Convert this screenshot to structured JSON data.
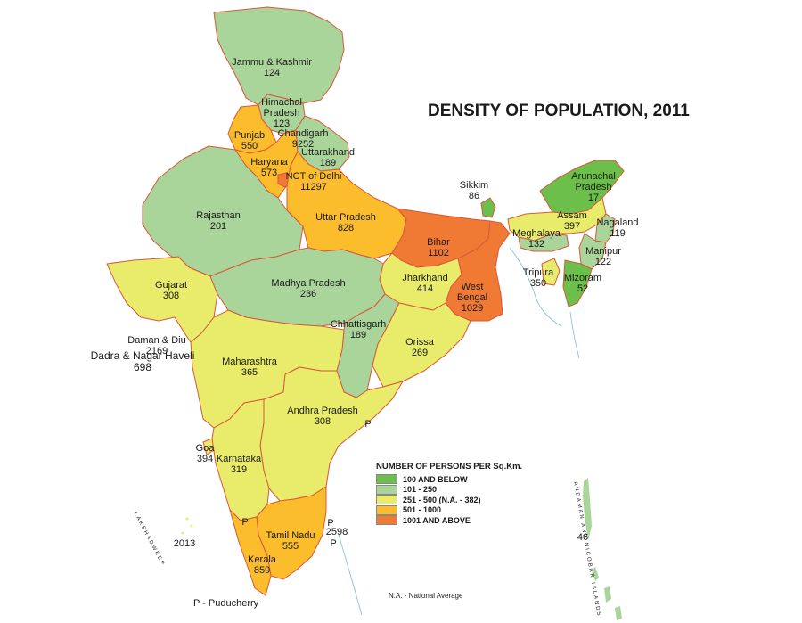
{
  "title": "DENSITY OF POPULATION, 2011",
  "legend": {
    "title": "NUMBER OF PERSONS PER Sq.Km.",
    "items": [
      {
        "label": "100 AND BELOW",
        "color": "#6cbf4a"
      },
      {
        "label": "101 - 250",
        "color": "#a9d49a"
      },
      {
        "label": "251 - 500 (N.A. - 382)",
        "color": "#e8ec6a"
      },
      {
        "label": "501 - 1000",
        "color": "#fbbd2c"
      },
      {
        "label": "1001 AND ABOVE",
        "color": "#f07a34"
      }
    ]
  },
  "regions": {
    "jammu_kashmir": {
      "name": "Jammu & Kashmir",
      "value": "124"
    },
    "himachal": {
      "name": "Himachal\nPradesh",
      "value": "123"
    },
    "punjab": {
      "name": "Punjab",
      "value": "550"
    },
    "chandigarh": {
      "name": "Chandigarh",
      "value": "9252"
    },
    "uttarakhand": {
      "name": "Uttarakhand",
      "value": "189"
    },
    "haryana": {
      "name": "Haryana",
      "value": "573"
    },
    "delhi": {
      "name": "NCT of Delhi",
      "value": "11297"
    },
    "rajasthan": {
      "name": "Rajasthan",
      "value": "201"
    },
    "uttar_pradesh": {
      "name": "Uttar Pradesh",
      "value": "828"
    },
    "bihar": {
      "name": "Bihar",
      "value": "1102"
    },
    "sikkim": {
      "name": "Sikkim",
      "value": "86"
    },
    "arunachal": {
      "name": "Arunachal\nPradesh",
      "value": "17"
    },
    "assam": {
      "name": "Assam",
      "value": "397"
    },
    "nagaland": {
      "name": "Nagaland",
      "value": "119"
    },
    "meghalaya": {
      "name": "Meghalaya",
      "value": "132"
    },
    "manipur": {
      "name": "Manipur",
      "value": "122"
    },
    "tripura": {
      "name": "Tripura",
      "value": "350"
    },
    "mizoram": {
      "name": "Mizoram",
      "value": "52"
    },
    "gujarat": {
      "name": "Gujarat",
      "value": "308"
    },
    "madhya_pradesh": {
      "name": "Madhya Pradesh",
      "value": "236"
    },
    "jharkhand": {
      "name": "Jharkhand",
      "value": "414"
    },
    "west_bengal": {
      "name": "West\nBengal",
      "value": "1029"
    },
    "chhattisgarh": {
      "name": "Chhattisgarh",
      "value": "189"
    },
    "daman_diu": {
      "name": "Daman & Diu",
      "value": "2169"
    },
    "dadra": {
      "name": "Dadra & Nagar Haveli",
      "value": "698"
    },
    "maharashtra": {
      "name": "Maharashtra",
      "value": "365"
    },
    "orissa": {
      "name": "Orissa",
      "value": "269"
    },
    "andhra": {
      "name": "Andhra Pradesh",
      "value": "308"
    },
    "goa": {
      "name": "Goa",
      "value": "394"
    },
    "karnataka": {
      "name": "Karnataka",
      "value": "319"
    },
    "tamil_nadu": {
      "name": "Tamil Nadu",
      "value": "555"
    },
    "kerala": {
      "name": "Kerala",
      "value": "859"
    },
    "puducherry_value": "2598",
    "lakshadweep_value": "2013",
    "andaman_value": "46"
  },
  "puducherry_marker": "P",
  "notes": {
    "puducherry": "P - Puducherry",
    "national_average": "N.A.  - National Average",
    "lakshadweep": "LAKSHADWEEP",
    "andaman": "ANDAMAN AND NICOBAR ISLANDS"
  }
}
